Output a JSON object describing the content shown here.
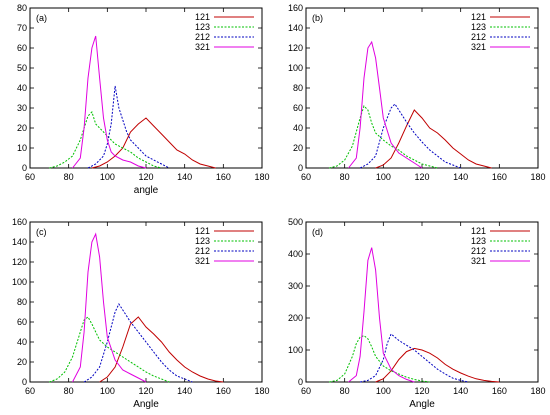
{
  "chart_data": [
    {
      "type": "line",
      "panel": "(a)",
      "xlabel": "angle",
      "ylabel": "",
      "xlim": [
        60,
        180
      ],
      "ylim": [
        0,
        80
      ],
      "xticks": [
        60,
        80,
        100,
        120,
        140,
        160,
        180
      ],
      "yticks": [
        0,
        10,
        20,
        30,
        40,
        50,
        60,
        70,
        80
      ],
      "legend_position": "top-right",
      "series": [
        {
          "name": "121",
          "color": "#c00000",
          "dash": "solid",
          "x": [
            92,
            96,
            100,
            104,
            108,
            112,
            116,
            120,
            124,
            128,
            132,
            136,
            140,
            144,
            148,
            152,
            156
          ],
          "y": [
            0,
            1,
            3,
            6,
            10,
            18,
            22,
            25,
            21,
            17,
            13,
            9,
            7,
            4,
            2,
            1,
            0
          ]
        },
        {
          "name": "123",
          "color": "#00c000",
          "dash": "dotted",
          "x": [
            70,
            74,
            78,
            82,
            86,
            88,
            90,
            92,
            94,
            96,
            98,
            100,
            102,
            104,
            108,
            112,
            116,
            120,
            124,
            128
          ],
          "y": [
            0,
            1,
            3,
            6,
            14,
            20,
            26,
            28,
            22,
            20,
            18,
            16,
            14,
            12,
            10,
            8,
            5,
            3,
            1,
            0
          ]
        },
        {
          "name": "212",
          "color": "#0000c0",
          "dash": "dotted",
          "x": [
            90,
            94,
            98,
            100,
            102,
            104,
            106,
            108,
            110,
            112,
            114,
            116,
            118,
            120,
            124,
            128,
            132
          ],
          "y": [
            0,
            2,
            6,
            12,
            22,
            41,
            30,
            24,
            18,
            14,
            12,
            10,
            8,
            6,
            4,
            2,
            0
          ]
        },
        {
          "name": "321",
          "color": "#e000e0",
          "dash": "solid",
          "x": [
            82,
            86,
            88,
            90,
            92,
            94,
            96,
            98,
            100,
            102,
            104,
            108,
            112,
            116,
            120
          ],
          "y": [
            0,
            5,
            20,
            45,
            60,
            66,
            45,
            25,
            14,
            8,
            6,
            4,
            3,
            1,
            0
          ]
        }
      ]
    },
    {
      "type": "line",
      "panel": "(b)",
      "xlabel": "",
      "ylabel": "",
      "xlim": [
        60,
        180
      ],
      "ylim": [
        0,
        160
      ],
      "xticks": [
        60,
        80,
        100,
        120,
        140,
        160,
        180
      ],
      "yticks": [
        0,
        20,
        40,
        60,
        80,
        100,
        120,
        140,
        160
      ],
      "legend_position": "top-right",
      "series": [
        {
          "name": "121",
          "color": "#c00000",
          "dash": "solid",
          "x": [
            96,
            100,
            104,
            108,
            112,
            116,
            120,
            124,
            128,
            132,
            136,
            140,
            144,
            148,
            152,
            156
          ],
          "y": [
            0,
            3,
            10,
            25,
            42,
            58,
            50,
            40,
            35,
            28,
            20,
            14,
            8,
            4,
            2,
            0
          ]
        },
        {
          "name": "123",
          "color": "#00c000",
          "dash": "dotted",
          "x": [
            72,
            76,
            80,
            84,
            88,
            90,
            92,
            94,
            96,
            100,
            104,
            108,
            112,
            116,
            120,
            124,
            128
          ],
          "y": [
            0,
            2,
            8,
            22,
            50,
            62,
            58,
            45,
            35,
            28,
            22,
            18,
            12,
            8,
            4,
            2,
            0
          ]
        },
        {
          "name": "212",
          "color": "#0000c0",
          "dash": "dotted",
          "x": [
            88,
            92,
            96,
            100,
            104,
            106,
            108,
            112,
            116,
            120,
            124,
            128,
            132,
            136,
            140
          ],
          "y": [
            0,
            4,
            12,
            40,
            60,
            64,
            58,
            46,
            35,
            26,
            18,
            12,
            6,
            3,
            0
          ]
        },
        {
          "name": "321",
          "color": "#e000e0",
          "dash": "solid",
          "x": [
            82,
            86,
            88,
            90,
            92,
            94,
            96,
            98,
            100,
            104,
            108,
            112,
            116,
            120
          ],
          "y": [
            0,
            10,
            40,
            90,
            120,
            126,
            110,
            80,
            50,
            25,
            15,
            10,
            5,
            0
          ]
        }
      ]
    },
    {
      "type": "line",
      "panel": "(c)",
      "xlabel": "Angle",
      "ylabel": "",
      "xlim": [
        60,
        180
      ],
      "ylim": [
        0,
        160
      ],
      "xticks": [
        60,
        80,
        100,
        120,
        140,
        160,
        180
      ],
      "yticks": [
        0,
        20,
        40,
        60,
        80,
        100,
        120,
        140,
        160
      ],
      "legend_position": "top-right",
      "series": [
        {
          "name": "121",
          "color": "#c00000",
          "dash": "solid",
          "x": [
            96,
            100,
            104,
            108,
            112,
            116,
            120,
            124,
            128,
            132,
            136,
            140,
            144,
            148,
            152,
            156,
            160
          ],
          "y": [
            0,
            5,
            15,
            35,
            58,
            65,
            55,
            48,
            40,
            30,
            22,
            15,
            10,
            6,
            3,
            1,
            0
          ]
        },
        {
          "name": "123",
          "color": "#00c000",
          "dash": "dotted",
          "x": [
            70,
            74,
            78,
            82,
            86,
            88,
            90,
            92,
            94,
            96,
            100,
            104,
            108,
            112,
            116,
            120,
            124,
            128,
            132
          ],
          "y": [
            0,
            3,
            10,
            25,
            50,
            62,
            65,
            58,
            50,
            42,
            35,
            30,
            25,
            20,
            15,
            10,
            6,
            3,
            0
          ]
        },
        {
          "name": "212",
          "color": "#0000c0",
          "dash": "dotted",
          "x": [
            88,
            92,
            96,
            100,
            104,
            106,
            108,
            112,
            116,
            120,
            124,
            128,
            132,
            136,
            140,
            144
          ],
          "y": [
            0,
            5,
            15,
            40,
            70,
            78,
            72,
            60,
            50,
            40,
            30,
            20,
            12,
            6,
            3,
            0
          ]
        },
        {
          "name": "321",
          "color": "#e000e0",
          "dash": "solid",
          "x": [
            82,
            86,
            88,
            90,
            92,
            94,
            96,
            98,
            100,
            104,
            108,
            112,
            116,
            120
          ],
          "y": [
            0,
            15,
            50,
            110,
            140,
            148,
            125,
            80,
            45,
            22,
            12,
            8,
            4,
            0
          ]
        }
      ]
    },
    {
      "type": "line",
      "panel": "(d)",
      "xlabel": "Angle",
      "ylabel": "",
      "xlim": [
        60,
        180
      ],
      "ylim": [
        0,
        500
      ],
      "xticks": [
        60,
        80,
        100,
        120,
        140,
        160,
        180
      ],
      "yticks": [
        0,
        100,
        200,
        300,
        400,
        500
      ],
      "legend_position": "top-right",
      "series": [
        {
          "name": "121",
          "color": "#c00000",
          "dash": "solid",
          "x": [
            96,
            100,
            104,
            108,
            112,
            116,
            120,
            124,
            128,
            132,
            136,
            140,
            144,
            148,
            152,
            156,
            160
          ],
          "y": [
            0,
            10,
            35,
            70,
            95,
            105,
            100,
            90,
            75,
            55,
            40,
            28,
            18,
            10,
            5,
            2,
            0
          ]
        },
        {
          "name": "123",
          "color": "#00c000",
          "dash": "dotted",
          "x": [
            72,
            76,
            80,
            84,
            86,
            88,
            90,
            92,
            94,
            96,
            100,
            104,
            108,
            112,
            116,
            120,
            124
          ],
          "y": [
            0,
            5,
            25,
            80,
            120,
            140,
            145,
            135,
            110,
            80,
            50,
            35,
            25,
            15,
            8,
            3,
            0
          ]
        },
        {
          "name": "212",
          "color": "#0000c0",
          "dash": "dotted",
          "x": [
            88,
            92,
            96,
            100,
            102,
            104,
            106,
            108,
            112,
            116,
            120,
            124,
            128,
            132,
            136,
            140,
            144
          ],
          "y": [
            0,
            5,
            20,
            70,
            120,
            150,
            140,
            130,
            115,
            100,
            80,
            60,
            40,
            25,
            12,
            5,
            0
          ]
        },
        {
          "name": "321",
          "color": "#e000e0",
          "dash": "solid",
          "x": [
            82,
            86,
            88,
            90,
            92,
            94,
            96,
            98,
            100,
            104,
            108,
            112,
            116
          ],
          "y": [
            0,
            20,
            80,
            220,
            380,
            420,
            350,
            200,
            90,
            40,
            20,
            8,
            0
          ]
        }
      ]
    }
  ]
}
